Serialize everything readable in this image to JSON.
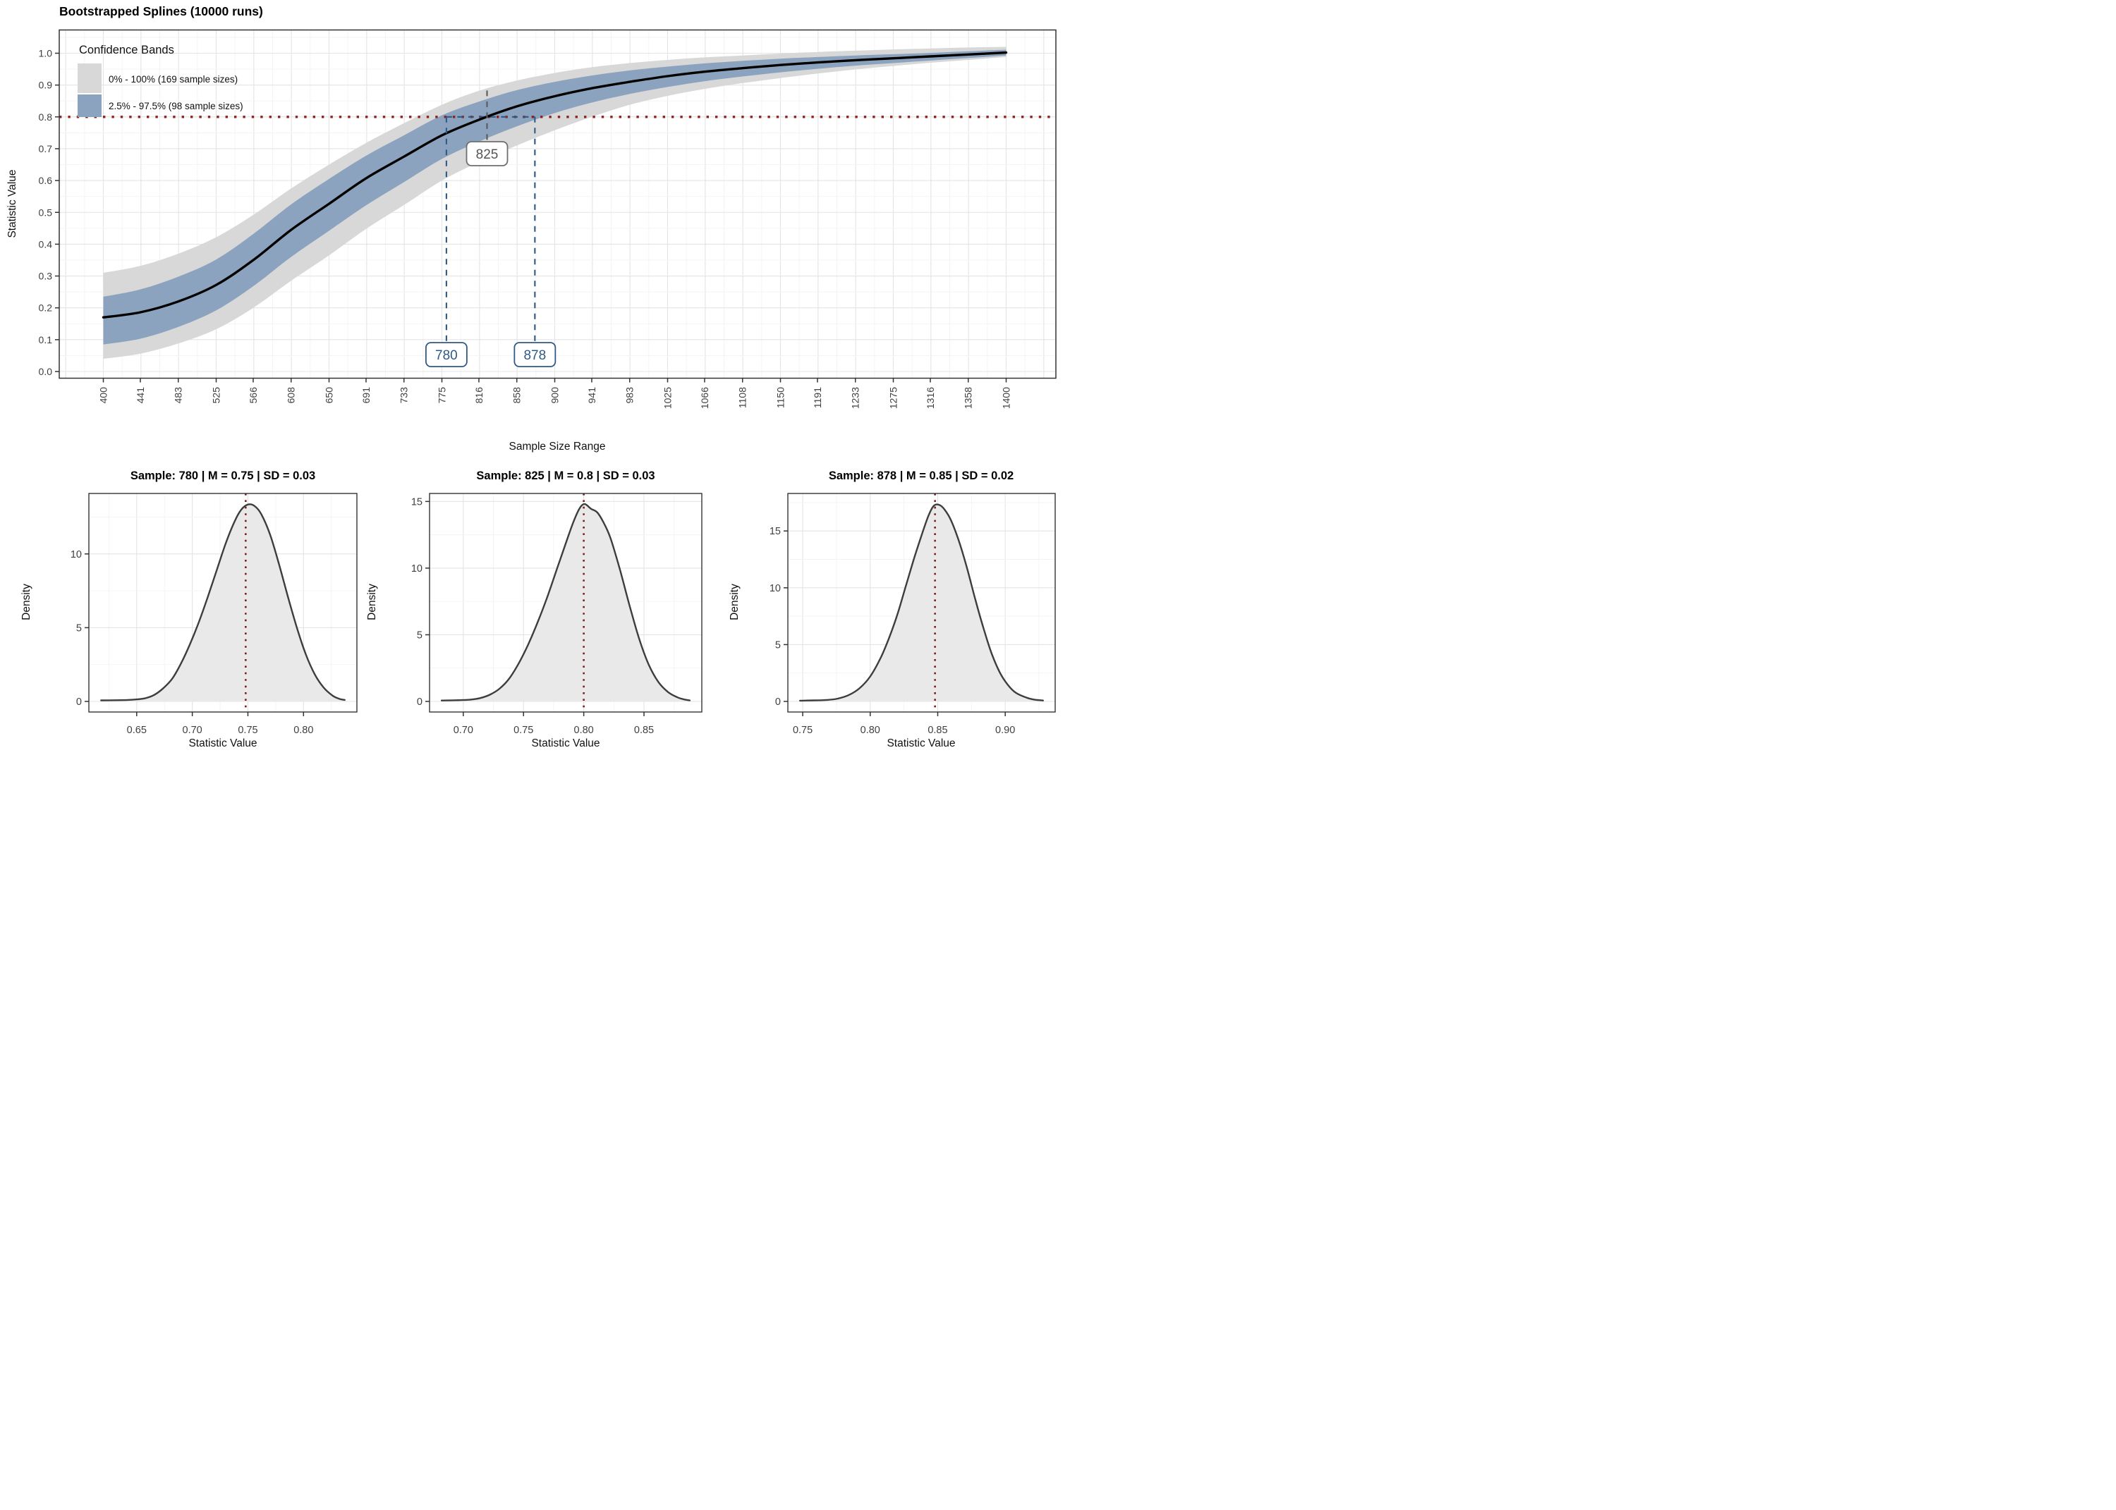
{
  "colors": {
    "band_outer": "#d8d8d8",
    "band_inner": "#8ba3be",
    "spline": "#000000",
    "threshold_red": "#8b2121",
    "annotation_blue": "#2e5a85",
    "annotation_gray": "#5a5a5a",
    "grid_major": "#e4e4e4",
    "grid_minor": "#f3f3f3",
    "panel_border": "#333333",
    "tick_text": "#3f3f3f",
    "density_fill": "#e9e9e9",
    "density_stroke": "#3d3d3d",
    "mean_line": "#7e1d1d"
  },
  "main_chart": {
    "title": "Bootstrapped Splines (10000 runs)",
    "xlabel": "Sample Size Range",
    "ylabel": "Statistic Value",
    "legend_title": "Confidence Bands",
    "legend_items": [
      {
        "label": "0% - 100% (169 sample sizes)",
        "swatch": "outer"
      },
      {
        "label": "2.5% - 97.5% (98 sample sizes)",
        "swatch": "inner"
      }
    ],
    "annotations": {
      "lower": "780",
      "mid": "825",
      "upper": "878"
    }
  },
  "density_charts": [
    {
      "title": "Sample: 780 | M = 0.75 | SD = 0.03",
      "xlabel": "Statistic Value",
      "ylabel": "Density"
    },
    {
      "title": "Sample: 825 | M = 0.8 | SD = 0.03",
      "xlabel": "Statistic Value",
      "ylabel": "Density"
    },
    {
      "title": "Sample: 878 | M = 0.85 | SD = 0.02",
      "xlabel": "Statistic Value",
      "ylabel": "Density"
    }
  ],
  "chart_data": [
    {
      "type": "line",
      "title": "Bootstrapped Splines (10000 runs)",
      "xlabel": "Sample Size Range",
      "ylabel": "Statistic Value",
      "x_ticks": [
        400,
        441,
        483,
        525,
        566,
        608,
        650,
        691,
        733,
        775,
        816,
        858,
        900,
        941,
        983,
        1025,
        1066,
        1108,
        1150,
        1191,
        1233,
        1275,
        1316,
        1358,
        1400
      ],
      "y_ticks": [
        0.0,
        0.1,
        0.2,
        0.3,
        0.4,
        0.5,
        0.6,
        0.7,
        0.8,
        0.9,
        1.0
      ],
      "xlim": [
        351,
        1457
      ],
      "ylim": [
        -0.021,
        1.073
      ],
      "threshold_y": 0.8,
      "ci_lower_x": 780,
      "ci_mid_x": 825,
      "ci_upper_x": 878,
      "x": [
        400,
        441,
        483,
        525,
        566,
        608,
        650,
        691,
        733,
        775,
        816,
        858,
        900,
        941,
        983,
        1025,
        1066,
        1108,
        1150,
        1191,
        1233,
        1275,
        1316,
        1358,
        1400
      ],
      "series": [
        {
          "name": "spline_mean",
          "values": [
            0.17,
            0.186,
            0.22,
            0.272,
            0.35,
            0.445,
            0.527,
            0.607,
            0.675,
            0.742,
            0.791,
            0.833,
            0.865,
            0.89,
            0.91,
            0.928,
            0.942,
            0.953,
            0.963,
            0.971,
            0.978,
            0.984,
            0.99,
            0.996,
            1.002
          ]
        },
        {
          "name": "band_2.5_97.5",
          "lo": [
            0.085,
            0.103,
            0.14,
            0.192,
            0.268,
            0.36,
            0.442,
            0.522,
            0.595,
            0.668,
            0.722,
            0.77,
            0.812,
            0.845,
            0.872,
            0.894,
            0.912,
            0.927,
            0.94,
            0.951,
            0.961,
            0.969,
            0.977,
            0.985,
            0.993
          ],
          "hi": [
            0.235,
            0.258,
            0.298,
            0.352,
            0.432,
            0.525,
            0.605,
            0.678,
            0.742,
            0.805,
            0.848,
            0.884,
            0.91,
            0.93,
            0.946,
            0.958,
            0.968,
            0.976,
            0.983,
            0.988,
            0.993,
            0.997,
            1.001,
            1.006,
            1.011
          ]
        },
        {
          "name": "band_0_100",
          "lo": [
            0.04,
            0.056,
            0.088,
            0.133,
            0.2,
            0.285,
            0.365,
            0.448,
            0.523,
            0.6,
            0.658,
            0.71,
            0.758,
            0.8,
            0.838,
            0.866,
            0.888,
            0.906,
            0.922,
            0.936,
            0.949,
            0.96,
            0.97,
            0.979,
            0.988
          ],
          "hi": [
            0.31,
            0.332,
            0.37,
            0.422,
            0.492,
            0.575,
            0.65,
            0.718,
            0.78,
            0.838,
            0.882,
            0.914,
            0.938,
            0.956,
            0.969,
            0.979,
            0.987,
            0.993,
            0.999,
            1.004,
            1.008,
            1.012,
            1.015,
            1.018,
            1.02
          ]
        }
      ],
      "legend_position": "top-left inside panel",
      "grid": true
    },
    {
      "type": "area",
      "title": "Sample: 780 | M = 0.75 | SD = 0.03",
      "xlabel": "Statistic Value",
      "ylabel": "Density",
      "mean": 0.748,
      "x_ticks": [
        0.65,
        0.7,
        0.75,
        0.8
      ],
      "y_ticks": [
        0,
        5,
        10
      ],
      "xlim": [
        0.607,
        0.848
      ],
      "ylim": [
        0,
        14.1
      ],
      "points": [
        [
          0.618,
          0.07
        ],
        [
          0.63,
          0.08
        ],
        [
          0.642,
          0.1
        ],
        [
          0.65,
          0.14
        ],
        [
          0.658,
          0.22
        ],
        [
          0.666,
          0.45
        ],
        [
          0.674,
          0.9
        ],
        [
          0.682,
          1.55
        ],
        [
          0.69,
          2.6
        ],
        [
          0.698,
          3.9
        ],
        [
          0.706,
          5.4
        ],
        [
          0.714,
          7.1
        ],
        [
          0.722,
          8.9
        ],
        [
          0.73,
          10.7
        ],
        [
          0.738,
          12.2
        ],
        [
          0.744,
          13.0
        ],
        [
          0.75,
          13.35
        ],
        [
          0.756,
          13.25
        ],
        [
          0.762,
          12.7
        ],
        [
          0.77,
          11.3
        ],
        [
          0.778,
          9.3
        ],
        [
          0.786,
          7.1
        ],
        [
          0.794,
          5.0
        ],
        [
          0.802,
          3.2
        ],
        [
          0.81,
          1.85
        ],
        [
          0.818,
          0.95
        ],
        [
          0.826,
          0.4
        ],
        [
          0.832,
          0.18
        ],
        [
          0.837,
          0.1
        ]
      ]
    },
    {
      "type": "area",
      "title": "Sample: 825 | M = 0.8 | SD = 0.03",
      "xlabel": "Statistic Value",
      "ylabel": "Density",
      "mean": 0.8,
      "x_ticks": [
        0.7,
        0.75,
        0.8,
        0.85
      ],
      "y_ticks": [
        0,
        5,
        10,
        15
      ],
      "xlim": [
        0.672,
        0.898
      ],
      "ylim": [
        0,
        15.6
      ],
      "points": [
        [
          0.682,
          0.07
        ],
        [
          0.694,
          0.09
        ],
        [
          0.706,
          0.14
        ],
        [
          0.714,
          0.25
        ],
        [
          0.722,
          0.5
        ],
        [
          0.73,
          0.95
        ],
        [
          0.738,
          1.7
        ],
        [
          0.746,
          2.85
        ],
        [
          0.754,
          4.3
        ],
        [
          0.762,
          6.0
        ],
        [
          0.77,
          7.9
        ],
        [
          0.778,
          10.0
        ],
        [
          0.786,
          12.1
        ],
        [
          0.792,
          13.6
        ],
        [
          0.797,
          14.55
        ],
        [
          0.801,
          14.8
        ],
        [
          0.806,
          14.45
        ],
        [
          0.811,
          14.2
        ],
        [
          0.816,
          13.5
        ],
        [
          0.822,
          12.3
        ],
        [
          0.83,
          9.9
        ],
        [
          0.838,
          7.2
        ],
        [
          0.846,
          4.7
        ],
        [
          0.854,
          2.75
        ],
        [
          0.862,
          1.45
        ],
        [
          0.87,
          0.7
        ],
        [
          0.878,
          0.3
        ],
        [
          0.884,
          0.14
        ],
        [
          0.888,
          0.08
        ]
      ]
    },
    {
      "type": "area",
      "title": "Sample: 878 | M = 0.85 | SD = 0.02",
      "xlabel": "Statistic Value",
      "ylabel": "Density",
      "mean": 0.848,
      "x_ticks": [
        0.75,
        0.8,
        0.85,
        0.9
      ],
      "y_ticks": [
        0,
        5,
        10,
        15
      ],
      "xlim": [
        0.739,
        0.937
      ],
      "ylim": [
        0,
        18.3
      ],
      "points": [
        [
          0.748,
          0.07
        ],
        [
          0.758,
          0.09
        ],
        [
          0.768,
          0.13
        ],
        [
          0.776,
          0.25
        ],
        [
          0.784,
          0.55
        ],
        [
          0.792,
          1.15
        ],
        [
          0.8,
          2.2
        ],
        [
          0.808,
          3.9
        ],
        [
          0.814,
          5.6
        ],
        [
          0.82,
          7.6
        ],
        [
          0.826,
          10.0
        ],
        [
          0.832,
          12.4
        ],
        [
          0.838,
          14.6
        ],
        [
          0.843,
          16.3
        ],
        [
          0.847,
          17.2
        ],
        [
          0.851,
          17.3
        ],
        [
          0.855,
          16.9
        ],
        [
          0.86,
          15.9
        ],
        [
          0.866,
          14.0
        ],
        [
          0.872,
          11.6
        ],
        [
          0.878,
          8.9
        ],
        [
          0.884,
          6.4
        ],
        [
          0.89,
          4.2
        ],
        [
          0.896,
          2.55
        ],
        [
          0.902,
          1.45
        ],
        [
          0.908,
          0.75
        ],
        [
          0.916,
          0.32
        ],
        [
          0.922,
          0.15
        ],
        [
          0.928,
          0.08
        ]
      ]
    }
  ]
}
